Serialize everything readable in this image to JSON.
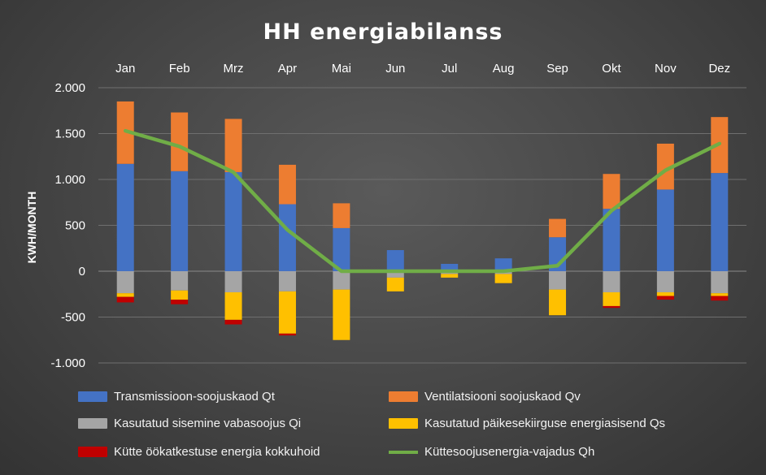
{
  "chart_data": {
    "type": "bar",
    "title": "HH energiabilanss",
    "xlabel": "",
    "ylabel": "KWH/MONTH",
    "ylim": [
      -1000,
      2000
    ],
    "yticks": [
      2000,
      1500,
      1000,
      500,
      0,
      -500,
      -1000
    ],
    "ytick_labels": [
      "2.000",
      "1.500",
      "1.000",
      "500",
      "0",
      "-500",
      "-1.000"
    ],
    "categories": [
      "Jan",
      "Feb",
      "Mrz",
      "Apr",
      "Mai",
      "Jun",
      "Jul",
      "Aug",
      "Sep",
      "Okt",
      "Nov",
      "Dez"
    ],
    "x_axis_position": "top",
    "grid": true,
    "stacked": true,
    "series": [
      {
        "name": "Transmissioon-soojuskaod Qt",
        "kind": "bar",
        "color": "#4472C4",
        "values": [
          1170,
          1090,
          1080,
          730,
          470,
          230,
          80,
          140,
          370,
          680,
          890,
          1070
        ]
      },
      {
        "name": "Ventilatsiooni soojuskaod Qv",
        "kind": "bar",
        "color": "#ED7D31",
        "values": [
          680,
          640,
          580,
          430,
          270,
          0,
          0,
          0,
          200,
          380,
          500,
          610
        ]
      },
      {
        "name": "Kasutatud sisemine vabasoojus Qi",
        "kind": "bar",
        "color": "#A5A5A5",
        "values": [
          -240,
          -210,
          -230,
          -220,
          -200,
          -70,
          -30,
          -30,
          -200,
          -230,
          -230,
          -240
        ]
      },
      {
        "name": "Kasutatud päikesekiirguse energiasisend Qs",
        "kind": "bar",
        "color": "#FFC000",
        "values": [
          -40,
          -100,
          -300,
          -460,
          -550,
          -150,
          -40,
          -100,
          -280,
          -150,
          -40,
          -30
        ]
      },
      {
        "name": "Kütte öökatkestuse energia kokkuhoid",
        "kind": "bar",
        "color": "#C00000",
        "values": [
          -60,
          -50,
          -50,
          -20,
          0,
          0,
          0,
          0,
          0,
          -20,
          -40,
          -50
        ]
      },
      {
        "name": "Küttesoojusenergia-vajadus Qh",
        "kind": "line",
        "color": "#70AD47",
        "values": [
          1530,
          1360,
          1080,
          450,
          0,
          0,
          0,
          0,
          60,
          660,
          1100,
          1390
        ]
      }
    ],
    "legend_position": "bottom"
  }
}
